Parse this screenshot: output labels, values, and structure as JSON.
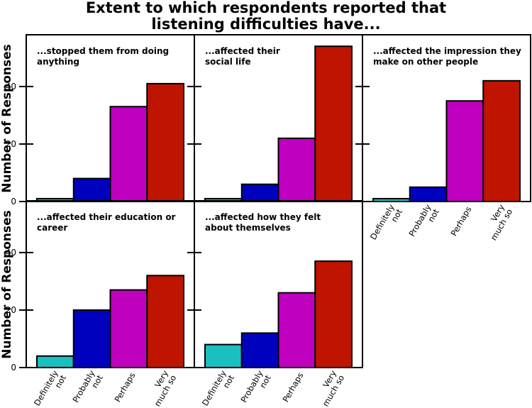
{
  "chart_data": {
    "type": "bar",
    "title": [
      "Extent to which respondents reported that",
      "listening difficulties have..."
    ],
    "ylabel": "Number of Responses",
    "categories": [
      [
        "Definitely",
        "not"
      ],
      [
        "Probably",
        "not"
      ],
      [
        "Perhaps"
      ],
      [
        "Very",
        "much so"
      ]
    ],
    "colors": [
      "#1abfbf",
      "#0000bf",
      "#bf00bf",
      "#bf1400"
    ],
    "ylim": [
      0,
      58
    ],
    "yticks": [
      0,
      20,
      40
    ],
    "panels": [
      {
        "title": [
          "...stopped them from doing",
          "anything"
        ],
        "values": [
          1,
          8,
          33,
          41
        ]
      },
      {
        "title": [
          "...affected their",
          "social life"
        ],
        "values": [
          1,
          6,
          22,
          54
        ]
      },
      {
        "title": [
          "...affected the impression they",
          "make on other people"
        ],
        "values": [
          1,
          5,
          35,
          42
        ]
      },
      {
        "title": [
          "...affected their education or",
          "career"
        ],
        "values": [
          4,
          20,
          27,
          32
        ]
      },
      {
        "title": [
          "...affected how they felt",
          "about themselves"
        ],
        "values": [
          8,
          12,
          26,
          37
        ]
      }
    ]
  }
}
